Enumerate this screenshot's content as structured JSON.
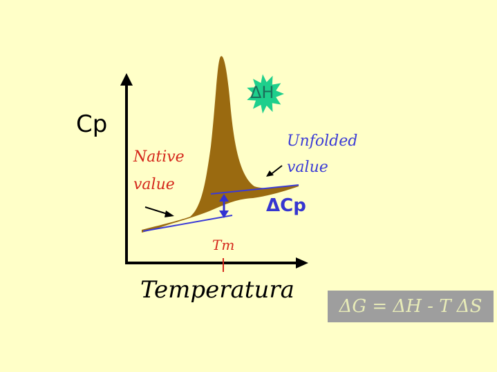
{
  "diagram": {
    "y_axis_label": "Cp",
    "x_axis_label": "Temperatura",
    "native_label_line1": "Native",
    "native_label_line2": "value",
    "unfolded_label_line1": "Unfolded",
    "unfolded_label_line2": "value",
    "delta_cp_label": "ΔCp",
    "delta_h_label": "ΔH",
    "tm_label": "Tm",
    "equation": "ΔG = ΔH - T ΔS"
  },
  "colors": {
    "background": "#ffffc8",
    "peak_fill": "#9a6a10",
    "baseline_line": "#3a3ad8",
    "arrow_blue": "#3232d2",
    "red_text": "#d4271b",
    "starburst": "#1ecf8c",
    "equation_box": "#9e9e9e",
    "equation_text": "#e8ecb8"
  }
}
